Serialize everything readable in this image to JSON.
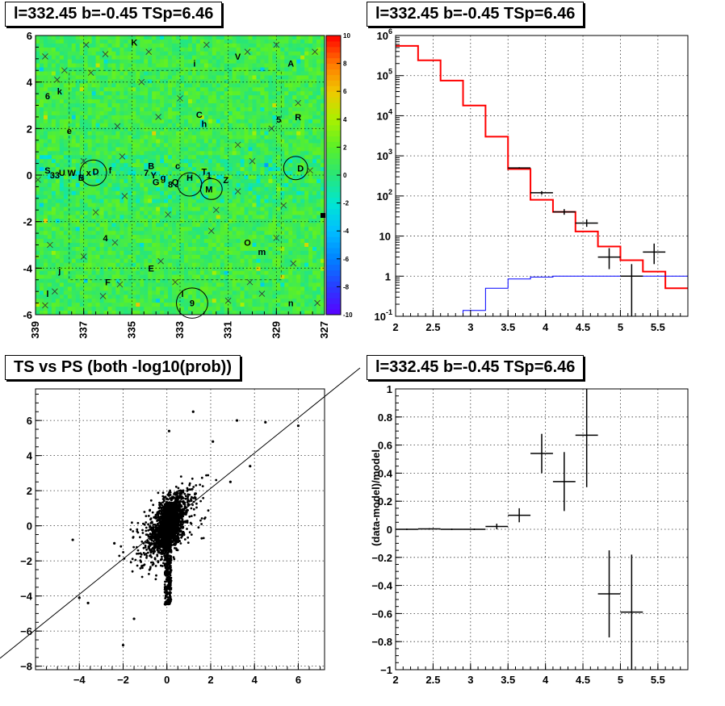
{
  "panels": {
    "skymap": {
      "title": "l=332.45 b=-0.45 TSp=6.46"
    },
    "spectrum": {
      "title": "l=332.45 b=-0.45 TSp=6.46"
    },
    "scatter": {
      "title": "TS vs PS (both -log10(prob))"
    },
    "residual": {
      "title": "l=332.45 b=-0.45 TSp=6.46"
    }
  },
  "chart_data": [
    {
      "type": "heatmap",
      "title": "l=332.45 b=-0.45 TSp=6.46",
      "xlim": [
        339,
        327
      ],
      "ylim": [
        -6,
        6
      ],
      "x_ticks": [
        "339",
        "337",
        "335",
        "333",
        "331",
        "329",
        "327"
      ],
      "y_ticks": [
        "-6",
        "-4",
        "-2",
        "0",
        "2",
        "4",
        "6"
      ],
      "colorbar": {
        "range": [
          -10,
          10
        ],
        "ticks": [
          "-10",
          "-8",
          "-6",
          "-4",
          "-2",
          "0",
          "2",
          "4",
          "6",
          "8",
          "10"
        ]
      },
      "grid": true,
      "colors": {
        "low": "#5a00ff",
        "mid": "#33ff33",
        "high": "#ff0000",
        "background": "#44dd44"
      },
      "source_labels": [
        {
          "t": "K",
          "x": 334.9,
          "y": 5.7
        },
        {
          "t": "i",
          "x": 332.4,
          "y": 4.8
        },
        {
          "t": "V",
          "x": 330.6,
          "y": 5.1
        },
        {
          "t": "A",
          "x": 328.4,
          "y": 4.8
        },
        {
          "t": "6",
          "x": 338.5,
          "y": 3.4
        },
        {
          "t": "k",
          "x": 338.0,
          "y": 3.6
        },
        {
          "t": "C",
          "x": 332.2,
          "y": 2.6
        },
        {
          "t": "h",
          "x": 332.0,
          "y": 2.2
        },
        {
          "t": "5",
          "x": 328.9,
          "y": 2.4
        },
        {
          "t": "R",
          "x": 328.1,
          "y": 2.5
        },
        {
          "t": "e",
          "x": 337.6,
          "y": 1.9
        },
        {
          "t": "S",
          "x": 338.5,
          "y": 0.2
        },
        {
          "t": "33",
          "x": 338.2,
          "y": 0.0
        },
        {
          "t": "W",
          "x": 337.5,
          "y": 0.1
        },
        {
          "t": "U",
          "x": 337.9,
          "y": 0.1
        },
        {
          "t": "B",
          "x": 337.1,
          "y": -0.1
        },
        {
          "t": "x",
          "x": 336.8,
          "y": 0.1
        },
        {
          "t": "D",
          "x": 336.5,
          "y": 0.15
        },
        {
          "t": "f",
          "x": 335.9,
          "y": 0.2
        },
        {
          "t": "B",
          "x": 334.2,
          "y": 0.4
        },
        {
          "t": "7",
          "x": 334.4,
          "y": 0.1
        },
        {
          "t": "Y",
          "x": 334.1,
          "y": 0.0
        },
        {
          "t": "c",
          "x": 333.1,
          "y": 0.4
        },
        {
          "t": "G",
          "x": 334.0,
          "y": -0.3
        },
        {
          "t": "g",
          "x": 333.7,
          "y": -0.1
        },
        {
          "t": "8",
          "x": 333.4,
          "y": -0.4
        },
        {
          "t": "Q",
          "x": 333.2,
          "y": -0.3
        },
        {
          "t": "T",
          "x": 332.0,
          "y": 0.15
        },
        {
          "t": "1",
          "x": 331.8,
          "y": 0.0
        },
        {
          "t": "H",
          "x": 332.6,
          "y": -0.1
        },
        {
          "t": "Z",
          "x": 331.1,
          "y": -0.2
        },
        {
          "t": "M",
          "x": 331.8,
          "y": -0.6
        },
        {
          "t": "D",
          "x": 328.0,
          "y": 0.3
        },
        {
          "t": "4",
          "x": 336.1,
          "y": -2.7
        },
        {
          "t": "O",
          "x": 330.2,
          "y": -2.9
        },
        {
          "t": "m",
          "x": 329.6,
          "y": -3.3
        },
        {
          "t": "j",
          "x": 338.0,
          "y": -4.1
        },
        {
          "t": "E",
          "x": 334.2,
          "y": -4.0
        },
        {
          "t": "F",
          "x": 336.0,
          "y": -4.6
        },
        {
          "t": "l",
          "x": 338.5,
          "y": -5.1
        },
        {
          "t": "l",
          "x": 332.9,
          "y": -5.1
        },
        {
          "t": "9",
          "x": 332.5,
          "y": -5.5
        },
        {
          "t": "n",
          "x": 328.4,
          "y": -5.5
        }
      ],
      "circles": [
        {
          "x": 336.6,
          "y": 0.1,
          "r": 0.55
        },
        {
          "x": 332.6,
          "y": -0.4,
          "r": 0.5
        },
        {
          "x": 331.7,
          "y": -0.6,
          "r": 0.45
        },
        {
          "x": 328.2,
          "y": 0.3,
          "r": 0.5
        },
        {
          "x": 332.5,
          "y": -5.5,
          "r": 0.65
        }
      ]
    },
    {
      "type": "line",
      "title": "l=332.45 b=-0.45 TSp=6.46",
      "xlim": [
        2.0,
        5.9
      ],
      "ylim": [
        0.1,
        1000000
      ],
      "y_scale": "log",
      "x_ticks": [
        "2",
        "2.5",
        "3",
        "3.5",
        "4",
        "4.5",
        "5",
        "5.5"
      ],
      "y_ticks": [
        "10^-1",
        "1",
        "10",
        "10^2",
        "10^3",
        "10^4",
        "10^5",
        "10^6"
      ],
      "grid": true,
      "series": [
        {
          "color": "#ff0000",
          "style": "step",
          "edges": [
            2.0,
            2.3,
            2.6,
            2.9,
            3.2,
            3.5,
            3.8,
            4.1,
            4.4,
            4.7,
            5.0,
            5.3,
            5.6,
            5.9
          ],
          "values": [
            550000,
            240000,
            75000,
            18000,
            3000,
            470,
            80,
            40,
            13,
            5.5,
            2.5,
            1.3,
            0.5
          ]
        },
        {
          "color": "#0000ff",
          "style": "step",
          "edges": [
            2.0,
            2.3,
            2.6,
            2.9,
            3.2,
            3.5,
            3.8,
            4.1,
            4.4,
            4.7,
            5.0,
            5.3,
            5.6,
            5.9
          ],
          "values": [
            0.1,
            0.1,
            0.1,
            0.14,
            0.5,
            0.85,
            0.95,
            1.0,
            1.0,
            1.0,
            1.0,
            1.0,
            1.0
          ]
        },
        {
          "color": "#000000",
          "style": "errorbar",
          "points": [
            {
              "x": 3.65,
              "y": 500,
              "xerr": 0.15,
              "ylo": 480,
              "yhi": 520
            },
            {
              "x": 3.95,
              "y": 120,
              "xerr": 0.15,
              "ylo": 108,
              "yhi": 132
            },
            {
              "x": 4.25,
              "y": 40,
              "xerr": 0.15,
              "ylo": 34,
              "yhi": 47
            },
            {
              "x": 4.55,
              "y": 21,
              "xerr": 0.15,
              "ylo": 17,
              "yhi": 26
            },
            {
              "x": 4.85,
              "y": 3,
              "xerr": 0.15,
              "ylo": 1.5,
              "yhi": 5
            },
            {
              "x": 5.15,
              "y": 1,
              "xerr": 0.15,
              "ylo": 0.1,
              "yhi": 2
            },
            {
              "x": 5.45,
              "y": 4,
              "xerr": 0.15,
              "ylo": 2,
              "yhi": 6.5
            }
          ]
        }
      ]
    },
    {
      "type": "scatter",
      "title": "TS vs PS (both -log10(prob))",
      "xlim": [
        -6,
        7.2
      ],
      "ylim": [
        -8.2,
        7.8
      ],
      "x_ticks": [
        "-4",
        "-2",
        "0",
        "2",
        "4",
        "6"
      ],
      "y_ticks": [
        "-8",
        "-6",
        "-4",
        "-2",
        "0",
        "2",
        "4",
        "6"
      ],
      "grid": true,
      "reference_line": {
        "slope": 1,
        "intercept": 0
      },
      "sample_points": [
        [
          4.5,
          5.9
        ],
        [
          6.0,
          5.7
        ],
        [
          3.2,
          6.0
        ],
        [
          1.2,
          6.5
        ],
        [
          2.1,
          4.8
        ],
        [
          -2.0,
          -6.8
        ],
        [
          -4.0,
          -4.1
        ],
        [
          -3.6,
          -4.4
        ],
        [
          -4.3,
          -0.8
        ],
        [
          -2.4,
          -1.0
        ],
        [
          -1.5,
          -5.3
        ],
        [
          2.9,
          2.5
        ],
        [
          3.8,
          3.4
        ],
        [
          0.1,
          5.4
        ]
      ]
    },
    {
      "type": "scatter",
      "title": "l=332.45 b=-0.45 TSp=6.46",
      "ylabel": "(data-model)/model",
      "xlim": [
        2.0,
        5.9
      ],
      "ylim": [
        -1,
        1
      ],
      "x_ticks": [
        "2",
        "2.5",
        "3",
        "3.5",
        "4",
        "4.5",
        "5",
        "5.5"
      ],
      "y_ticks": [
        "-1",
        "-0.8",
        "-0.6",
        "-0.4",
        "-0.2",
        "0",
        "0.2",
        "0.4",
        "0.6",
        "0.8",
        "1"
      ],
      "grid": true,
      "points": [
        {
          "x": 2.15,
          "y": 0.0,
          "xerr": 0.15,
          "yerr": 0.005
        },
        {
          "x": 2.45,
          "y": 0.003,
          "xerr": 0.15,
          "yerr": 0.005
        },
        {
          "x": 2.75,
          "y": 0.0,
          "xerr": 0.15,
          "yerr": 0.005
        },
        {
          "x": 3.05,
          "y": 0.0,
          "xerr": 0.15,
          "yerr": 0.005
        },
        {
          "x": 3.35,
          "y": 0.02,
          "xerr": 0.15,
          "yerr": 0.02
        },
        {
          "x": 3.65,
          "y": 0.1,
          "xerr": 0.15,
          "yerr": 0.05
        },
        {
          "x": 3.95,
          "y": 0.54,
          "xerr": 0.15,
          "yerr": 0.14
        },
        {
          "x": 4.25,
          "y": 0.34,
          "xerr": 0.15,
          "yerr": 0.21
        },
        {
          "x": 4.55,
          "y": 0.67,
          "xerr": 0.15,
          "yerr": 0.37
        },
        {
          "x": 4.85,
          "y": -0.46,
          "xerr": 0.15,
          "yerr": 0.31
        },
        {
          "x": 5.15,
          "y": -0.59,
          "xerr": 0.15,
          "yerr": 0.41
        }
      ]
    }
  ]
}
